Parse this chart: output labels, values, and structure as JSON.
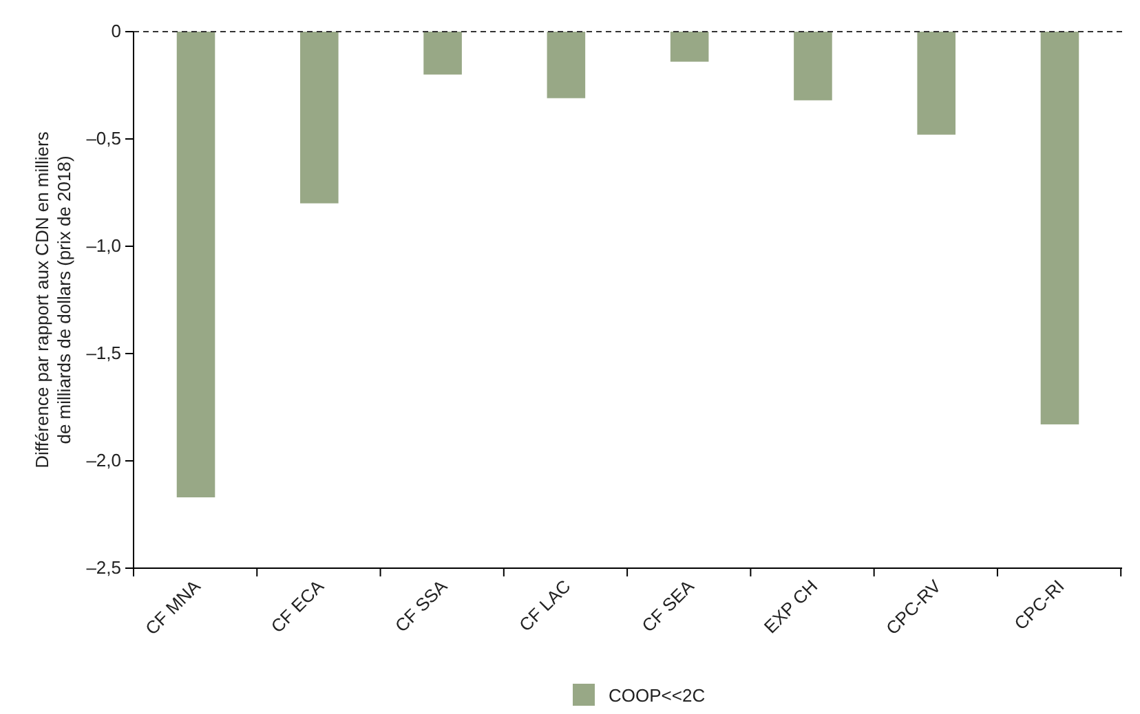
{
  "chart_data": {
    "type": "bar",
    "ylabel": "Différence par rapport aux CDN en milliers\nde milliards de dollars (prix de 2018)",
    "categories": [
      "CF MNA",
      "CF ECA",
      "CF SSA",
      "CF LAC",
      "CF SEA",
      "EXP CH",
      "CPC-RV",
      "CPC-RI"
    ],
    "series": [
      {
        "name": "COOP<<2C",
        "color": "#98a886",
        "values": [
          -2.17,
          -0.8,
          -0.2,
          -0.31,
          -0.14,
          -0.32,
          -0.48,
          -1.83
        ]
      }
    ],
    "ylim": [
      -2.5,
      0
    ],
    "yticks": [
      {
        "value": -2.5,
        "label": "–2,5"
      },
      {
        "value": -2,
        "label": "–2,0"
      },
      {
        "value": -1.5,
        "label": "–1,5"
      },
      {
        "value": -1,
        "label": "–1,0"
      },
      {
        "value": -0.5,
        "label": "–0,5"
      },
      0
    ],
    "ref_lines": [
      {
        "axis": "y",
        "value": 0,
        "line_style": "dashed",
        "color": "#333333"
      }
    ],
    "legend": "bottom",
    "grid": false
  }
}
